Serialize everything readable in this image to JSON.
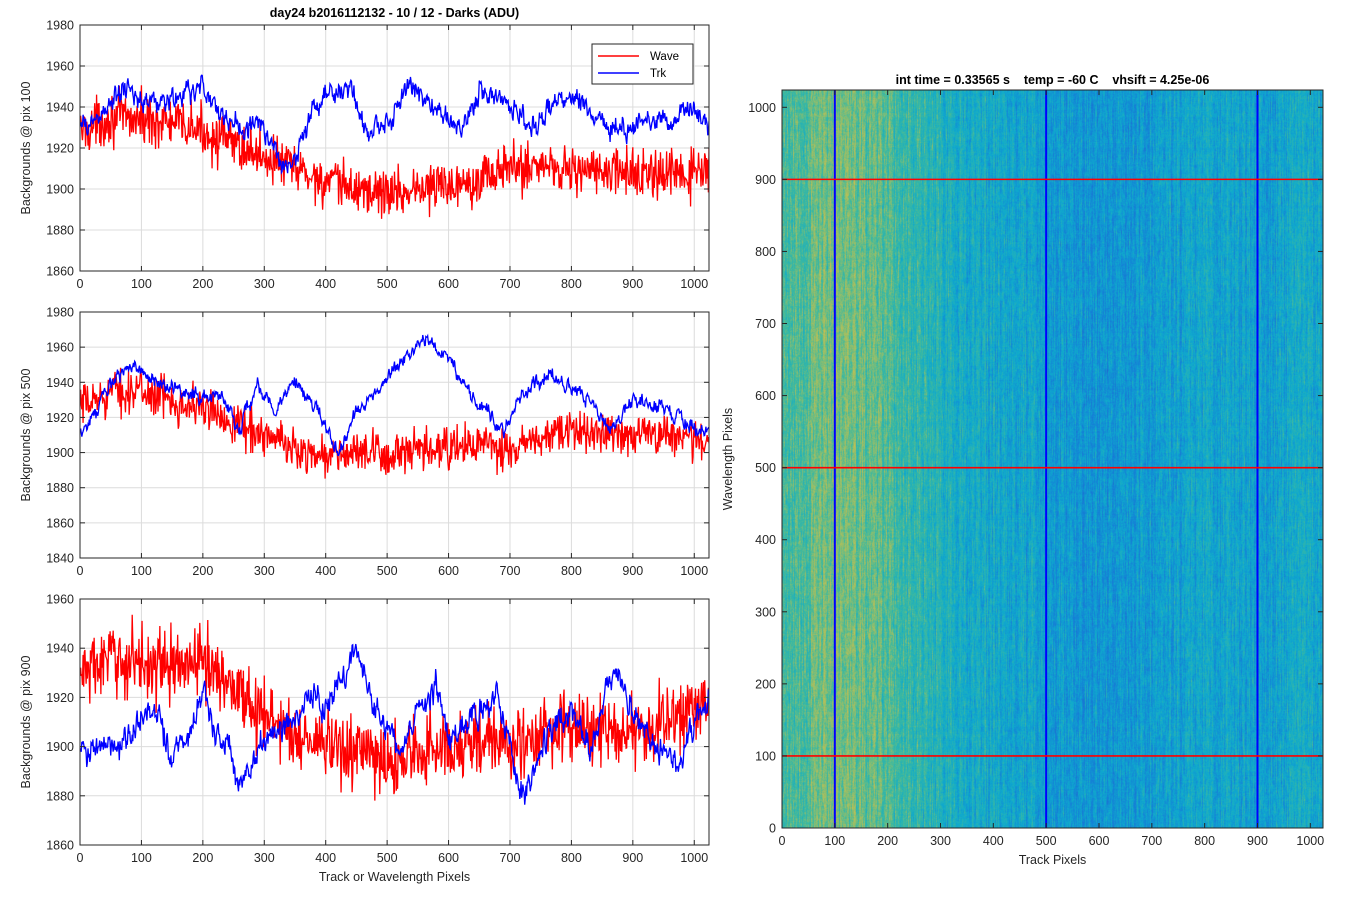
{
  "figure": {
    "title": "day24 b2016112132 - 10 / 12 - Darks (ADU)"
  },
  "chart_data": [
    {
      "type": "line",
      "panel": "top",
      "title": "day24 b2016112132 - 10 / 12 - Darks (ADU)",
      "xlabel": "",
      "ylabel": "Backgrounds @ pix 100",
      "xlim": [
        0,
        1024
      ],
      "ylim": [
        1860,
        1980
      ],
      "xticks": [
        0,
        100,
        200,
        300,
        400,
        500,
        600,
        700,
        800,
        900,
        1000
      ],
      "yticks": [
        1860,
        1880,
        1900,
        1920,
        1940,
        1960,
        1980
      ],
      "grid": true,
      "legend": "top-right",
      "series": [
        {
          "name": "Wave",
          "color": "#ff0000",
          "noise": 10,
          "trend": [
            [
              0,
              1928
            ],
            [
              50,
              1935
            ],
            [
              100,
              1934
            ],
            [
              150,
              1932
            ],
            [
              200,
              1928
            ],
            [
              250,
              1922
            ],
            [
              300,
              1916
            ],
            [
              350,
              1910
            ],
            [
              400,
              1903
            ],
            [
              450,
              1900
            ],
            [
              500,
              1898
            ],
            [
              550,
              1900
            ],
            [
              600,
              1902
            ],
            [
              650,
              1906
            ],
            [
              700,
              1910
            ],
            [
              750,
              1912
            ],
            [
              800,
              1910
            ],
            [
              850,
              1908
            ],
            [
              900,
              1908
            ],
            [
              950,
              1906
            ],
            [
              1024,
              1908
            ]
          ]
        },
        {
          "name": "Trk",
          "color": "#0000ff",
          "noise": 4,
          "trend": [
            [
              0,
              1928
            ],
            [
              40,
              1938
            ],
            [
              70,
              1948
            ],
            [
              100,
              1944
            ],
            [
              130,
              1942
            ],
            [
              170,
              1945
            ],
            [
              200,
              1950
            ],
            [
              230,
              1936
            ],
            [
              270,
              1930
            ],
            [
              300,
              1930
            ],
            [
              330,
              1910
            ],
            [
              360,
              1920
            ],
            [
              380,
              1940
            ],
            [
              410,
              1948
            ],
            [
              440,
              1948
            ],
            [
              470,
              1925
            ],
            [
              500,
              1933
            ],
            [
              540,
              1950
            ],
            [
              580,
              1938
            ],
            [
              620,
              1930
            ],
            [
              650,
              1948
            ],
            [
              700,
              1942
            ],
            [
              740,
              1928
            ],
            [
              780,
              1945
            ],
            [
              810,
              1945
            ],
            [
              830,
              1938
            ],
            [
              860,
              1932
            ],
            [
              890,
              1930
            ],
            [
              930,
              1935
            ],
            [
              960,
              1935
            ],
            [
              990,
              1940
            ],
            [
              1024,
              1930
            ]
          ]
        }
      ]
    },
    {
      "type": "line",
      "panel": "middle",
      "title": "",
      "xlabel": "",
      "ylabel": "Backgrounds @ pix 500",
      "xlim": [
        0,
        1024
      ],
      "ylim": [
        1840,
        1980
      ],
      "xticks": [
        0,
        100,
        200,
        300,
        400,
        500,
        600,
        700,
        800,
        900,
        1000
      ],
      "yticks": [
        1840,
        1860,
        1880,
        1900,
        1920,
        1940,
        1960,
        1980
      ],
      "grid": true,
      "series": [
        {
          "name": "Wave",
          "color": "#ff0000",
          "noise": 10,
          "trend": [
            [
              0,
              1925
            ],
            [
              50,
              1935
            ],
            [
              100,
              1935
            ],
            [
              150,
              1930
            ],
            [
              200,
              1925
            ],
            [
              250,
              1918
            ],
            [
              300,
              1910
            ],
            [
              350,
              1902
            ],
            [
              400,
              1898
            ],
            [
              450,
              1900
            ],
            [
              500,
              1898
            ],
            [
              550,
              1900
            ],
            [
              600,
              1902
            ],
            [
              650,
              1905
            ],
            [
              700,
              1900
            ],
            [
              750,
              1908
            ],
            [
              800,
              1912
            ],
            [
              850,
              1912
            ],
            [
              900,
              1910
            ],
            [
              950,
              1912
            ],
            [
              1024,
              1905
            ]
          ]
        },
        {
          "name": "Trk",
          "color": "#0000ff",
          "noise": 3,
          "trend": [
            [
              0,
              1912
            ],
            [
              30,
              1925
            ],
            [
              60,
              1945
            ],
            [
              90,
              1948
            ],
            [
              120,
              1942
            ],
            [
              160,
              1935
            ],
            [
              200,
              1932
            ],
            [
              230,
              1932
            ],
            [
              260,
              1915
            ],
            [
              290,
              1938
            ],
            [
              320,
              1924
            ],
            [
              350,
              1940
            ],
            [
              390,
              1922
            ],
            [
              420,
              1900
            ],
            [
              450,
              1922
            ],
            [
              480,
              1935
            ],
            [
              520,
              1950
            ],
            [
              560,
              1965
            ],
            [
              600,
              1955
            ],
            [
              630,
              1935
            ],
            [
              660,
              1925
            ],
            [
              690,
              1912
            ],
            [
              720,
              1932
            ],
            [
              760,
              1945
            ],
            [
              790,
              1940
            ],
            [
              830,
              1930
            ],
            [
              860,
              1915
            ],
            [
              900,
              1930
            ],
            [
              950,
              1925
            ],
            [
              990,
              1918
            ],
            [
              1024,
              1910
            ]
          ]
        }
      ]
    },
    {
      "type": "line",
      "panel": "bottom",
      "title": "",
      "xlabel": "Track or Wavelength Pixels",
      "ylabel": "Backgrounds @ pix 900",
      "xlim": [
        0,
        1024
      ],
      "ylim": [
        1860,
        1960
      ],
      "xticks": [
        0,
        100,
        200,
        300,
        400,
        500,
        600,
        700,
        800,
        900,
        1000
      ],
      "yticks": [
        1860,
        1880,
        1900,
        1920,
        1940,
        1960
      ],
      "grid": true,
      "series": [
        {
          "name": "Wave",
          "color": "#ff0000",
          "noise": 12,
          "trend": [
            [
              0,
              1930
            ],
            [
              50,
              1935
            ],
            [
              100,
              1935
            ],
            [
              150,
              1932
            ],
            [
              200,
              1935
            ],
            [
              250,
              1925
            ],
            [
              300,
              1912
            ],
            [
              350,
              1905
            ],
            [
              400,
              1900
            ],
            [
              450,
              1898
            ],
            [
              500,
              1893
            ],
            [
              550,
              1898
            ],
            [
              600,
              1900
            ],
            [
              650,
              1903
            ],
            [
              700,
              1900
            ],
            [
              750,
              1905
            ],
            [
              800,
              1908
            ],
            [
              850,
              1906
            ],
            [
              900,
              1905
            ],
            [
              950,
              1910
            ],
            [
              1024,
              1918
            ]
          ]
        },
        {
          "name": "Trk",
          "color": "#0000ff",
          "noise": 4,
          "trend": [
            [
              0,
              1898
            ],
            [
              30,
              1900
            ],
            [
              60,
              1898
            ],
            [
              100,
              1912
            ],
            [
              130,
              1912
            ],
            [
              150,
              1895
            ],
            [
              180,
              1905
            ],
            [
              200,
              1925
            ],
            [
              220,
              1905
            ],
            [
              240,
              1905
            ],
            [
              260,
              1885
            ],
            [
              290,
              1900
            ],
            [
              320,
              1905
            ],
            [
              350,
              1912
            ],
            [
              380,
              1922
            ],
            [
              400,
              1915
            ],
            [
              430,
              1930
            ],
            [
              450,
              1940
            ],
            [
              480,
              1915
            ],
            [
              520,
              1900
            ],
            [
              560,
              1915
            ],
            [
              580,
              1925
            ],
            [
              600,
              1900
            ],
            [
              640,
              1915
            ],
            [
              680,
              1918
            ],
            [
              700,
              1900
            ],
            [
              720,
              1878
            ],
            [
              760,
              1905
            ],
            [
              800,
              1915
            ],
            [
              830,
              1900
            ],
            [
              870,
              1932
            ],
            [
              900,
              1915
            ],
            [
              940,
              1900
            ],
            [
              980,
              1895
            ],
            [
              1024,
              1920
            ]
          ]
        }
      ]
    },
    {
      "type": "heatmap",
      "panel": "right",
      "title": "int time = 0.33565 s    temp = -60 C    vhsift = 4.25e-06",
      "xlabel": "Track Pixels",
      "ylabel": "Wavelength Pixels",
      "xlim": [
        0,
        1024
      ],
      "ylim": [
        0,
        1024
      ],
      "xticks": [
        0,
        100,
        200,
        300,
        400,
        500,
        600,
        700,
        800,
        900,
        1000
      ],
      "yticks": [
        0,
        100,
        200,
        300,
        400,
        500,
        600,
        700,
        800,
        900,
        1000
      ],
      "colormap": "parula",
      "vertical_markers": {
        "values": [
          100,
          500,
          900
        ],
        "color": "#0000ff"
      },
      "horizontal_markers": {
        "values": [
          100,
          500,
          900
        ],
        "color": "#ff0000"
      }
    }
  ]
}
